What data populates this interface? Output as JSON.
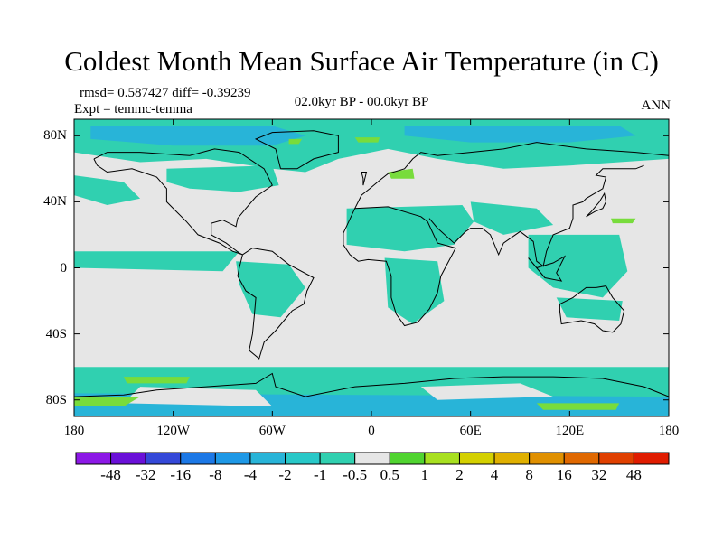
{
  "title": "Coldest Month Mean Surface Air Temperature (in C)",
  "stats": "rmsd= 0.587427 diff= -0.39239",
  "experiment": "Expt = temmc-temma",
  "period": "02.0kyr BP - 00.0kyr BP",
  "season": "ANN",
  "map": {
    "projection": "cylindrical equidistant",
    "lon_range": [
      -180,
      180
    ],
    "lat_range": [
      -90,
      90
    ],
    "lat_ticks": [
      {
        "v": 80,
        "label": "80N"
      },
      {
        "v": 40,
        "label": "40N"
      },
      {
        "v": 0,
        "label": "0"
      },
      {
        "v": -40,
        "label": "40S"
      },
      {
        "v": -80,
        "label": "80S"
      }
    ],
    "lon_ticks": [
      {
        "v": -180,
        "label": "180"
      },
      {
        "v": -120,
        "label": "120W"
      },
      {
        "v": -60,
        "label": "60W"
      },
      {
        "v": 0,
        "label": "0"
      },
      {
        "v": 60,
        "label": "60E"
      },
      {
        "v": 120,
        "label": "120E"
      },
      {
        "v": 180,
        "label": "180"
      }
    ]
  },
  "colors": {
    "background_neutral": "#e6e6e6",
    "dominant_negative": "#30d0b0",
    "secondary_negative": "#28b4d8",
    "positive_light": "#78dc3c",
    "coastline": "#000000"
  },
  "legend": {
    "colors": [
      "#8c18e6",
      "#6a10d8",
      "#3448d8",
      "#1c78e6",
      "#1e98e6",
      "#28b4d8",
      "#28c8c8",
      "#30d0b0",
      "#e6e6e6",
      "#50d430",
      "#a8e020",
      "#d4d000",
      "#e0b000",
      "#e09000",
      "#e06800",
      "#e04000",
      "#e01c00"
    ],
    "labels": [
      "-48",
      "-32",
      "-16",
      "-8",
      "-4",
      "-2",
      "-1",
      "-0.5",
      "0.5",
      "1",
      "2",
      "4",
      "8",
      "16",
      "32",
      "48"
    ]
  }
}
